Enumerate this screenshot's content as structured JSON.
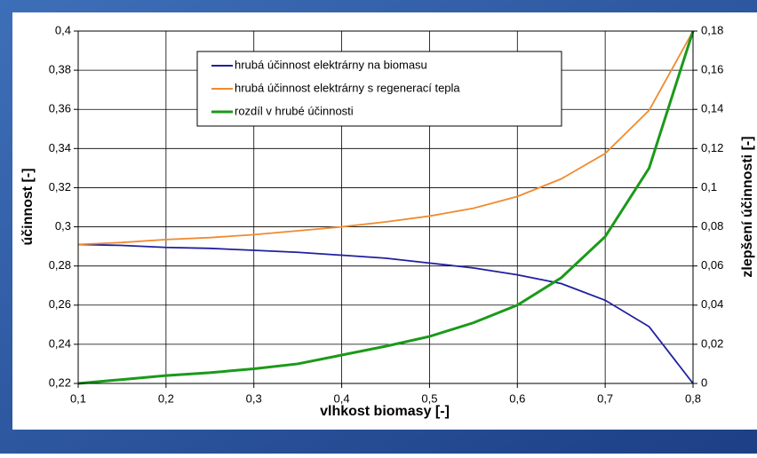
{
  "chart_data": {
    "type": "line",
    "xlabel": "vlhkost biomasy [-]",
    "ylabel": "účinnost [-]",
    "y2label": "zlepšení účinnosti [-]",
    "x": [
      0.1,
      0.15,
      0.2,
      0.25,
      0.3,
      0.35,
      0.4,
      0.45,
      0.5,
      0.55,
      0.6,
      0.65,
      0.7,
      0.75,
      0.8
    ],
    "series": [
      {
        "name": "hrubá účinnost elektrárny na biomasu",
        "color": "#2020a0",
        "values": [
          0.291,
          0.2905,
          0.2895,
          0.289,
          0.288,
          0.287,
          0.2855,
          0.284,
          0.2815,
          0.279,
          0.2755,
          0.271,
          0.2625,
          0.249,
          0.22
        ]
      },
      {
        "name": "hrubá účinnost elektrárny s regenerací tepla",
        "color": "#f08a30",
        "values": [
          0.291,
          0.292,
          0.2935,
          0.2945,
          0.296,
          0.298,
          0.3,
          0.3025,
          0.3055,
          0.3095,
          0.3155,
          0.3245,
          0.3375,
          0.3595,
          0.4
        ]
      },
      {
        "name": "rozdíl v hrubé účinnosti",
        "color": "#1a9a1a",
        "axis": "y2",
        "values": [
          0,
          0.002,
          0.004,
          0.0055,
          0.0075,
          0.01,
          0.0145,
          0.019,
          0.024,
          0.031,
          0.04,
          0.054,
          0.075,
          0.11,
          0.18
        ]
      }
    ],
    "xlim": [
      0.1,
      0.8
    ],
    "xticks": [
      {
        "value": 0.1,
        "label": "0,1"
      },
      {
        "value": 0.2,
        "label": "0,2"
      },
      {
        "value": 0.3,
        "label": "0,3"
      },
      {
        "value": 0.4,
        "label": "0,4"
      },
      {
        "value": 0.5,
        "label": "0,5"
      },
      {
        "value": 0.6,
        "label": "0,6"
      },
      {
        "value": 0.7,
        "label": "0,7"
      },
      {
        "value": 0.8,
        "label": "0,8"
      }
    ],
    "ylim": [
      0.22,
      0.4
    ],
    "yticks": [
      {
        "value": 0.22,
        "label": "0,22"
      },
      {
        "value": 0.24,
        "label": "0,24"
      },
      {
        "value": 0.26,
        "label": "0,26"
      },
      {
        "value": 0.28,
        "label": "0,28"
      },
      {
        "value": 0.3,
        "label": "0,3"
      },
      {
        "value": 0.32,
        "label": "0,32"
      },
      {
        "value": 0.34,
        "label": "0,34"
      },
      {
        "value": 0.36,
        "label": "0,36"
      },
      {
        "value": 0.38,
        "label": "0,38"
      },
      {
        "value": 0.4,
        "label": "0,4"
      }
    ],
    "y2lim": [
      0,
      0.18
    ],
    "y2ticks": [
      0,
      {
        "value": 0.02,
        "label": "0,02"
      },
      {
        "value": 0.04,
        "label": "0,04"
      },
      {
        "value": 0.06,
        "label": "0,06"
      },
      {
        "value": 0.08,
        "label": "0,08"
      },
      {
        "value": 0.1,
        "label": "0,1"
      },
      {
        "value": 0.12,
        "label": "0,12"
      },
      {
        "value": 0.14,
        "label": "0,14"
      },
      {
        "value": 0.16,
        "label": "0,16"
      },
      {
        "value": 0.18,
        "label": "0,18"
      }
    ],
    "grid": true
  }
}
